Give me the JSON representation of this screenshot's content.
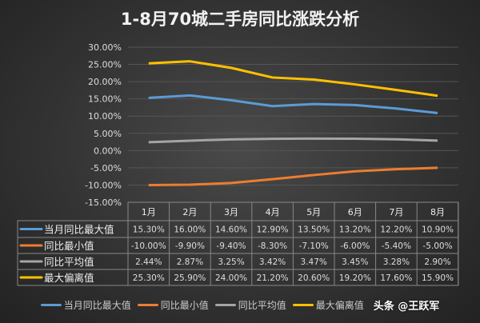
{
  "chart_data": {
    "type": "line",
    "title": "1-8月70城二手房同比涨跌分析",
    "categories": [
      "1月",
      "2月",
      "3月",
      "4月",
      "5月",
      "6月",
      "7月",
      "8月"
    ],
    "ylim": [
      -15,
      30
    ],
    "yticks": [
      "30.00%",
      "25.00%",
      "20.00%",
      "15.00%",
      "10.00%",
      "5.00%",
      "0.00%",
      "-5.00%",
      "-10.00%",
      "-15.00%"
    ],
    "grid": true,
    "legend": "bottom",
    "data_table": true,
    "series": [
      {
        "name": "当月同比最大值",
        "color": "#5b9bd5",
        "values": [
          15.3,
          16.0,
          14.6,
          12.9,
          13.5,
          13.2,
          12.2,
          10.9
        ],
        "labels": [
          "15.30%",
          "16.00%",
          "14.60%",
          "12.90%",
          "13.50%",
          "13.20%",
          "12.20%",
          "10.90%"
        ]
      },
      {
        "name": "同比最小值",
        "color": "#ed7d31",
        "values": [
          -10.0,
          -9.9,
          -9.4,
          -8.3,
          -7.1,
          -6.0,
          -5.4,
          -5.0
        ],
        "labels": [
          "-10.00%",
          "-9.90%",
          "-9.40%",
          "-8.30%",
          "-7.10%",
          "-6.00%",
          "-5.40%",
          "-5.00%"
        ]
      },
      {
        "name": "同比平均值",
        "color": "#a5a5a5",
        "values": [
          2.44,
          2.87,
          3.25,
          3.42,
          3.47,
          3.45,
          3.28,
          2.9
        ],
        "labels": [
          "2.44%",
          "2.87%",
          "3.25%",
          "3.42%",
          "3.47%",
          "3.45%",
          "3.28%",
          "2.90%"
        ]
      },
      {
        "name": "最大偏离值",
        "color": "#ffc000",
        "values": [
          25.3,
          25.9,
          24.0,
          21.2,
          20.6,
          19.2,
          17.6,
          15.9
        ],
        "labels": [
          "25.30%",
          "25.90%",
          "24.00%",
          "21.20%",
          "20.60%",
          "19.20%",
          "17.60%",
          "15.90%"
        ]
      }
    ]
  },
  "watermark": "头条 @王跃军"
}
